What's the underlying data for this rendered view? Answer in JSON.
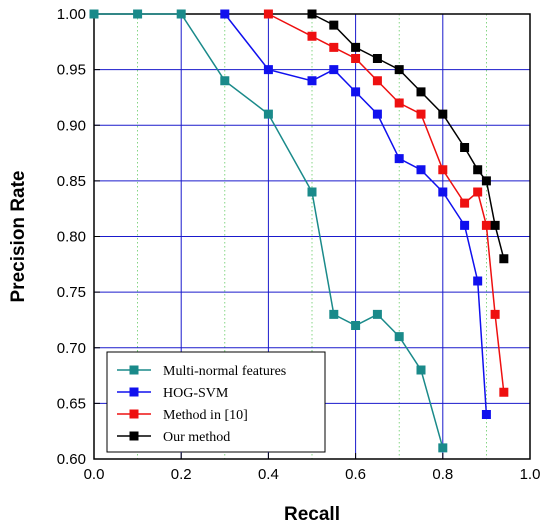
{
  "chart_data": {
    "type": "line",
    "title": "",
    "xlabel": "Recall",
    "ylabel": "Precision Rate",
    "xlim": [
      0.0,
      1.0
    ],
    "ylim": [
      0.6,
      1.0
    ],
    "x_ticks": [
      0.0,
      0.2,
      0.4,
      0.6,
      0.8,
      1.0
    ],
    "y_ticks": [
      0.6,
      0.65,
      0.7,
      0.75,
      0.8,
      0.85,
      0.9,
      0.95,
      1.0
    ],
    "x_tick_labels": [
      "0.0",
      "0.2",
      "0.4",
      "0.6",
      "0.8",
      "1.0"
    ],
    "y_tick_labels": [
      "0.60",
      "0.65",
      "0.70",
      "0.75",
      "0.80",
      "0.85",
      "0.90",
      "0.95",
      "1.00"
    ],
    "grid": {
      "major": true,
      "minor": true,
      "major_color": "#1a1acc",
      "minor_color": "#66cc66"
    },
    "legend_position": "bottom-left",
    "series": [
      {
        "name": "Multi-normal features",
        "color": "#1a8a8a",
        "x": [
          0.0,
          0.1,
          0.2,
          0.3,
          0.4,
          0.5,
          0.55,
          0.6,
          0.65,
          0.7,
          0.75,
          0.8
        ],
        "y": [
          1.0,
          1.0,
          1.0,
          0.94,
          0.91,
          0.84,
          0.73,
          0.72,
          0.73,
          0.71,
          0.68,
          0.61
        ]
      },
      {
        "name": "HOG-SVM",
        "color": "#1010ee",
        "x": [
          0.3,
          0.4,
          0.5,
          0.55,
          0.6,
          0.65,
          0.7,
          0.75,
          0.8,
          0.85,
          0.88,
          0.9
        ],
        "y": [
          1.0,
          0.95,
          0.94,
          0.95,
          0.93,
          0.91,
          0.87,
          0.86,
          0.84,
          0.81,
          0.76,
          0.64
        ]
      },
      {
        "name": "Method in [10]",
        "color": "#ee1010",
        "x": [
          0.4,
          0.5,
          0.55,
          0.6,
          0.65,
          0.7,
          0.75,
          0.8,
          0.85,
          0.88,
          0.9,
          0.92,
          0.94
        ],
        "y": [
          1.0,
          0.98,
          0.97,
          0.96,
          0.94,
          0.92,
          0.91,
          0.86,
          0.83,
          0.84,
          0.81,
          0.73,
          0.66
        ]
      },
      {
        "name": "Our method",
        "color": "#000000",
        "x": [
          0.5,
          0.55,
          0.6,
          0.65,
          0.7,
          0.75,
          0.8,
          0.85,
          0.88,
          0.9,
          0.92,
          0.94
        ],
        "y": [
          1.0,
          0.99,
          0.97,
          0.96,
          0.95,
          0.93,
          0.91,
          0.88,
          0.86,
          0.85,
          0.81,
          0.78
        ]
      }
    ]
  }
}
